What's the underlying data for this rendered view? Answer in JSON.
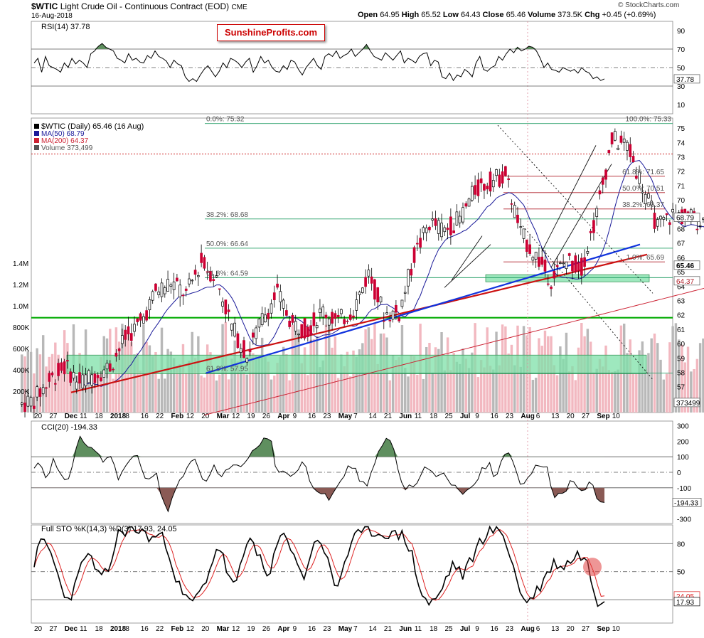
{
  "header": {
    "ticker": "$WTIC",
    "title": "Light Crude Oil - Continuous Contract (EOD)",
    "exchange": "CME",
    "date": "16-Aug-2018",
    "open_label": "Open",
    "open": "64.95",
    "high_label": "High",
    "high": "65.52",
    "low_label": "Low",
    "low": "64.43",
    "close_label": "Close",
    "close": "65.46",
    "volume_label": "Volume",
    "volume": "373.5K",
    "chg_label": "Chg",
    "chg": "+0.45 (+0.69%)",
    "copyright": "© StockCharts.com",
    "watermark": "SunshineProfits.com"
  },
  "colors": {
    "up_candle": "#ffffff",
    "down_candle": "#cc0033",
    "ma50": "#1a1a99",
    "ma200": "#cc2233",
    "blue_trend": "#1133dd",
    "red_trend": "#cc1111",
    "green_line": "#00aa00",
    "zone_fill": "#7ee0a8",
    "overbought_fill": "#5f8f5f",
    "oversold_fill": "#8a5a55"
  },
  "rsi_panel": {
    "label": "RSI(14) 37.78",
    "ticks": [
      "90",
      "70",
      "50",
      "30",
      "10"
    ],
    "last_value": "37.78",
    "series": [
      55,
      60,
      45,
      62,
      52,
      50,
      48,
      45,
      55,
      50,
      60,
      54,
      58,
      55,
      50,
      65,
      68,
      73,
      76,
      72,
      70,
      68,
      60,
      58,
      55,
      65,
      58,
      60,
      56,
      55,
      63,
      60,
      68,
      62,
      60,
      57,
      50,
      58,
      54,
      52,
      40,
      35,
      38,
      35,
      42,
      48,
      52,
      46,
      40,
      46,
      55,
      50,
      60,
      58,
      55,
      50,
      56,
      60,
      45,
      52,
      62,
      55,
      58,
      50,
      46,
      45,
      52,
      48,
      58,
      56,
      48,
      42,
      50,
      55,
      60,
      52,
      48,
      62,
      65,
      62,
      68,
      60,
      63,
      65,
      70,
      62,
      66,
      70,
      75,
      68,
      62,
      60,
      58,
      66,
      62,
      58,
      63,
      68,
      55,
      60,
      58,
      55,
      62,
      65,
      66,
      52,
      58,
      56,
      40,
      38,
      44,
      36,
      42,
      40,
      48,
      45,
      40,
      55,
      62,
      48,
      46,
      50,
      52,
      62,
      58,
      65,
      70,
      66,
      72,
      68,
      70,
      73,
      72,
      68,
      60,
      50,
      55,
      48,
      47,
      45,
      50,
      48,
      46,
      48,
      44,
      50,
      46,
      44,
      38,
      40,
      36,
      38
    ]
  },
  "price_panel": {
    "legend_title": "$WTIC (Daily) 65.46 (16 Aug)",
    "legend_ma50": "MA(50) 68.79",
    "legend_ma200": "MA(200) 64.37",
    "legend_volume": "Volume 373,499",
    "price_ticks": [
      "75",
      "74",
      "73",
      "72",
      "71",
      "70",
      "69",
      "68",
      "67",
      "66",
      "65",
      "64",
      "63",
      "62",
      "61",
      "60",
      "59",
      "58",
      "57",
      "56"
    ],
    "volume_ticks": [
      "1.4M",
      "1.2M",
      "1.0M",
      "800K",
      "600K",
      "400K",
      "200K"
    ],
    "fib_labels": [
      {
        "text": "0.0%: 75.32",
        "price": 75.32
      },
      {
        "text": "100.0%: 75.33",
        "price": 75.33
      },
      {
        "text": "38.2%: 68.68",
        "price": 68.68
      },
      {
        "text": "50.0%: 66.64",
        "price": 66.64
      },
      {
        "text": "61.8%: 64.59",
        "price": 64.59
      },
      {
        "text": "61.8%: 57.95",
        "price": 57.95
      },
      {
        "text": "61.8%: 71.65",
        "price": 71.65
      },
      {
        "text": "50.0%: 70.51",
        "price": 70.51
      },
      {
        "text": "38.2%: 69.37",
        "price": 69.37
      },
      {
        "text": "1.0%: 65.69",
        "price": 65.69
      }
    ],
    "price_badges": [
      {
        "text": "68.79",
        "price": 68.79
      },
      {
        "text": "65.46",
        "price": 65.46
      },
      {
        "text": "64.37",
        "price": 64.37
      },
      {
        "text": "373499",
        "price": 55.9
      }
    ],
    "ylim": [
      55.2,
      75.7
    ]
  },
  "cci_panel": {
    "label": "CCI(20) -194.33",
    "ticks": [
      "300",
      "200",
      "100",
      "0",
      "-100",
      "-200",
      "-300"
    ],
    "last_value": "-194.33"
  },
  "sto_panel": {
    "label": "Full STO %K(14,3) %D(3) 17.93, 24.05",
    "label_k": "17.93",
    "label_d": "24.05",
    "ticks": [
      "80",
      "50",
      "20"
    ],
    "last_k": "17.93",
    "last_d": "24.05"
  },
  "x_axis": {
    "labels": [
      {
        "text": "20",
        "bold": false
      },
      {
        "text": "27",
        "bold": false
      },
      {
        "text": "Dec",
        "bold": true
      },
      {
        "text": "11",
        "bold": false
      },
      {
        "text": "18",
        "bold": false
      },
      {
        "text": "2018",
        "bold": true
      },
      {
        "text": "8",
        "bold": false
      },
      {
        "text": "16",
        "bold": false
      },
      {
        "text": "22",
        "bold": false
      },
      {
        "text": "Feb",
        "bold": true
      },
      {
        "text": "12",
        "bold": false
      },
      {
        "text": "20",
        "bold": false
      },
      {
        "text": "Mar",
        "bold": true
      },
      {
        "text": "12",
        "bold": false
      },
      {
        "text": "19",
        "bold": false
      },
      {
        "text": "26",
        "bold": false
      },
      {
        "text": "Apr",
        "bold": true
      },
      {
        "text": "9",
        "bold": false
      },
      {
        "text": "16",
        "bold": false
      },
      {
        "text": "23",
        "bold": false
      },
      {
        "text": "May",
        "bold": true
      },
      {
        "text": "7",
        "bold": false
      },
      {
        "text": "14",
        "bold": false
      },
      {
        "text": "21",
        "bold": false
      },
      {
        "text": "Jun",
        "bold": true
      },
      {
        "text": "11",
        "bold": false
      },
      {
        "text": "18",
        "bold": false
      },
      {
        "text": "25",
        "bold": false
      },
      {
        "text": "Jul",
        "bold": true
      },
      {
        "text": "9",
        "bold": false
      },
      {
        "text": "16",
        "bold": false
      },
      {
        "text": "23",
        "bold": false
      },
      {
        "text": "Aug",
        "bold": true
      },
      {
        "text": "6",
        "bold": false
      },
      {
        "text": "13",
        "bold": false
      },
      {
        "text": "20",
        "bold": false
      },
      {
        "text": "27",
        "bold": false
      },
      {
        "text": "Sep",
        "bold": true
      },
      {
        "text": "10",
        "bold": false
      }
    ]
  },
  "chart_data": {
    "type": "candlestick",
    "title": "$WTIC Light Crude Oil - Continuous Contract (EOD)",
    "date_range": [
      "2017-11-20",
      "2018-08-16"
    ],
    "weekly_closes": [
      56.1,
      57.4,
      58.4,
      57.3,
      57.9,
      58.4,
      60.4,
      61.4,
      63.6,
      64.3,
      63.4,
      65.7,
      64.5,
      61.2,
      59.2,
      61.7,
      63.5,
      61.3,
      61.0,
      62.3,
      61.5,
      62.4,
      64.9,
      62.1,
      62.1,
      66.1,
      68.4,
      67.9,
      68.7,
      70.7,
      71.3,
      71.8,
      67.6,
      66.1,
      64.5,
      65.8,
      65.3,
      69.0,
      74.2,
      73.8,
      71.0,
      68.1,
      69.0,
      68.8,
      68.5,
      67.6,
      65.5
    ],
    "last_close": 65.46,
    "ma50_last": 68.79,
    "ma200_last": 64.37,
    "volume_last": 373499,
    "rsi14_last": 37.78,
    "cci20_last": -194.33,
    "stoch_k_last": 17.93,
    "stoch_d_last": 24.05,
    "fib_retracements": [
      75.32,
      68.68,
      66.64,
      64.59,
      57.95
    ],
    "recent_fib_levels": [
      71.65,
      70.51,
      69.37,
      65.69
    ],
    "support_line": 61.8,
    "resistance_line": 73.2,
    "support_zone": [
      57.9,
      59.2
    ],
    "support_zone_recent": [
      64.3,
      64.8
    ]
  }
}
